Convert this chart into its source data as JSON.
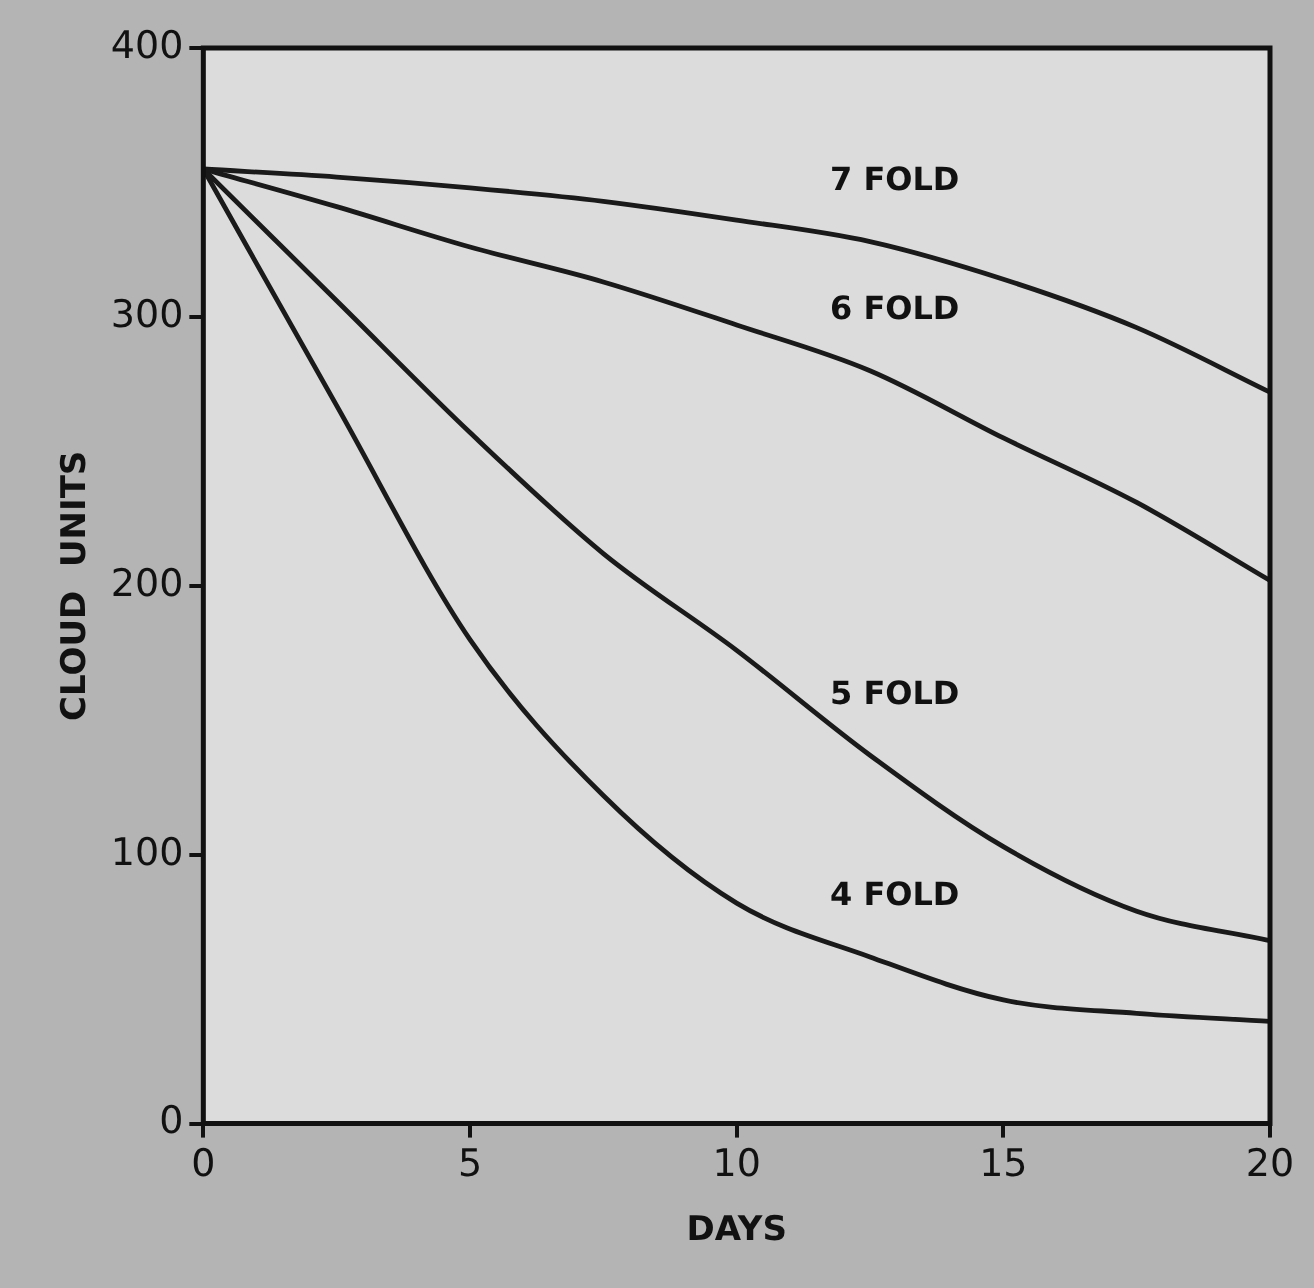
{
  "chart_data": {
    "type": "line",
    "xlabel": "DAYS",
    "ylabel": "CLOUD  UNITS",
    "x": [
      0,
      2.5,
      5,
      7.5,
      10,
      12.5,
      15,
      17.5,
      20
    ],
    "series": [
      {
        "name": "7 FOLD",
        "color": "#1a1a1a",
        "values": [
          355,
          352,
          348,
          343,
          336,
          328,
          314,
          296,
          272
        ]
      },
      {
        "name": "6 FOLD",
        "color": "#1a1a1a",
        "values": [
          355,
          341,
          326,
          313,
          297,
          280,
          255,
          231,
          202
        ]
      },
      {
        "name": "5 FOLD",
        "color": "#1a1a1a",
        "values": [
          355,
          306,
          257,
          212,
          176,
          137,
          103,
          79,
          68
        ]
      },
      {
        "name": "4 FOLD",
        "color": "#1a1a1a",
        "values": [
          355,
          267,
          180,
          122,
          82,
          62,
          46,
          41,
          38
        ]
      }
    ],
    "xlim": [
      0,
      20
    ],
    "xticks": [
      0,
      5,
      10,
      15,
      20
    ],
    "ylim": [
      0,
      400
    ],
    "yticks": [
      0,
      100,
      200,
      300,
      400
    ],
    "grid": false,
    "legend": false,
    "marker": "none",
    "line_style": "solid"
  }
}
